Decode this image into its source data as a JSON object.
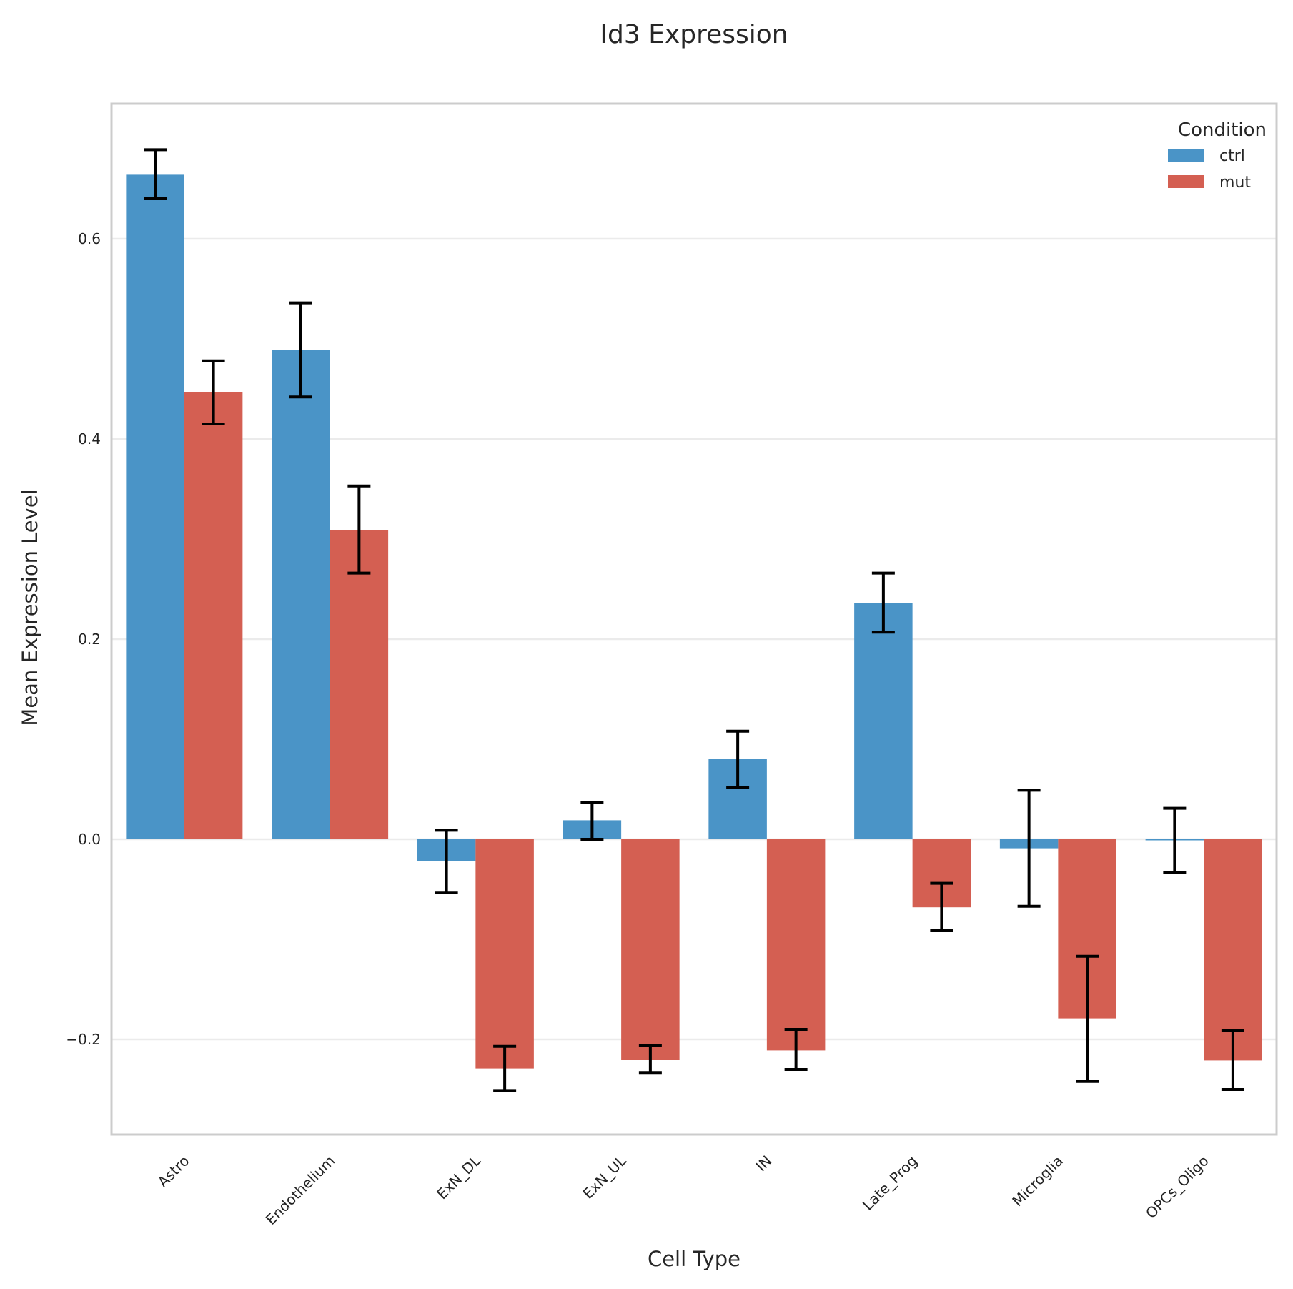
{
  "chart_data": {
    "type": "bar",
    "title": "Id3 Expression",
    "xlabel": "Cell Type",
    "ylabel": "Mean Expression Level",
    "categories": [
      "Astro",
      "Endothelium",
      "ExN_DL",
      "ExN_UL",
      "IN",
      "Late_Prog",
      "Microglia",
      "OPCs_Oligo"
    ],
    "ylim": [
      -0.295,
      0.735
    ],
    "yticks": [
      -0.2,
      0.0,
      0.2,
      0.4,
      0.6
    ],
    "ytick_labels": [
      "−0.2",
      "0.0",
      "0.2",
      "0.4",
      "0.6"
    ],
    "grid": true,
    "legend": {
      "title": "Condition",
      "placement": "top-right"
    },
    "series": [
      {
        "name": "ctrl",
        "color": "#4a94c7",
        "values": [
          0.664,
          0.489,
          -0.022,
          0.019,
          0.08,
          0.236,
          -0.009,
          -0.001
        ],
        "error_low": [
          0.64,
          0.442,
          -0.053,
          0.0,
          0.052,
          0.207,
          -0.067,
          -0.033
        ],
        "error_high": [
          0.689,
          0.536,
          0.009,
          0.037,
          0.108,
          0.266,
          0.049,
          0.031
        ]
      },
      {
        "name": "mut",
        "color": "#d45f52",
        "values": [
          0.447,
          0.309,
          -0.229,
          -0.22,
          -0.211,
          -0.068,
          -0.179,
          -0.221
        ],
        "error_low": [
          0.415,
          0.266,
          -0.251,
          -0.233,
          -0.23,
          -0.091,
          -0.242,
          -0.25
        ],
        "error_high": [
          0.478,
          0.353,
          -0.207,
          -0.206,
          -0.19,
          -0.044,
          -0.117,
          -0.191
        ]
      }
    ]
  }
}
